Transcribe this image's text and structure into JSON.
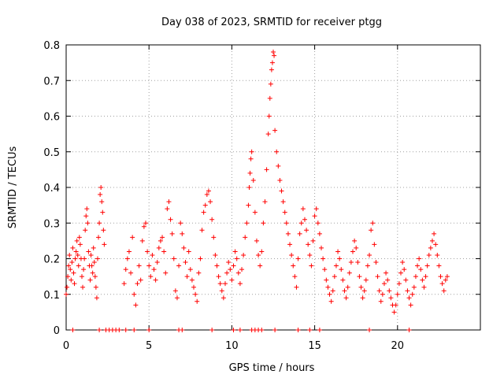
{
  "chart_data": {
    "type": "scatter",
    "title": "Day 038 of 2023, SRMTID for receiver ptgg",
    "xlabel": "GPS time / hours",
    "ylabel": "SRMTID / TECUs",
    "xlim": [
      0,
      25
    ],
    "ylim": [
      0,
      0.8
    ],
    "xticks": [
      0,
      5,
      10,
      15,
      20
    ],
    "xtick_labels": [
      "0",
      "5",
      "10",
      "15",
      "20"
    ],
    "yticks": [
      0,
      0.1,
      0.2,
      0.3,
      0.4,
      0.5,
      0.6,
      0.7,
      0.8
    ],
    "ytick_labels": [
      "0",
      "0.1",
      "0.2",
      "0.3",
      "0.4",
      "0.5",
      "0.6",
      "0.7",
      "0.8"
    ],
    "grid": true,
    "marker": "+",
    "color": "#ff0000",
    "series": [
      {
        "name": "SRMTID",
        "points": [
          [
            0.0,
            0.1
          ],
          [
            0.05,
            0.12
          ],
          [
            0.1,
            0.15
          ],
          [
            0.15,
            0.18
          ],
          [
            0.2,
            0.21
          ],
          [
            0.25,
            0.17
          ],
          [
            0.3,
            0.14
          ],
          [
            0.35,
            0.19
          ],
          [
            0.4,
            0.23
          ],
          [
            0.45,
            0.16
          ],
          [
            0.5,
            0.13
          ],
          [
            0.55,
            0.2
          ],
          [
            0.6,
            0.22
          ],
          [
            0.65,
            0.25
          ],
          [
            0.7,
            0.21
          ],
          [
            0.75,
            0.18
          ],
          [
            0.8,
            0.26
          ],
          [
            0.85,
            0.24
          ],
          [
            0.9,
            0.2
          ],
          [
            0.95,
            0.15
          ],
          [
            1.0,
            0.12
          ],
          [
            1.05,
            0.17
          ],
          [
            1.1,
            0.2
          ],
          [
            1.15,
            0.28
          ],
          [
            1.2,
            0.32
          ],
          [
            1.25,
            0.34
          ],
          [
            1.3,
            0.3
          ],
          [
            1.35,
            0.22
          ],
          [
            1.4,
            0.18
          ],
          [
            1.45,
            0.14
          ],
          [
            1.5,
            0.21
          ],
          [
            1.55,
            0.18
          ],
          [
            1.6,
            0.16
          ],
          [
            1.65,
            0.23
          ],
          [
            1.7,
            0.19
          ],
          [
            1.75,
            0.15
          ],
          [
            1.8,
            0.12
          ],
          [
            1.85,
            0.09
          ],
          [
            1.9,
            0.2
          ],
          [
            1.95,
            0.26
          ],
          [
            2.0,
            0.3
          ],
          [
            2.05,
            0.38
          ],
          [
            2.1,
            0.4
          ],
          [
            2.15,
            0.36
          ],
          [
            2.2,
            0.33
          ],
          [
            2.25,
            0.28
          ],
          [
            2.3,
            0.24
          ],
          [
            3.5,
            0.13
          ],
          [
            3.6,
            0.17
          ],
          [
            3.7,
            0.2
          ],
          [
            3.8,
            0.22
          ],
          [
            3.9,
            0.16
          ],
          [
            4.0,
            0.26
          ],
          [
            4.1,
            0.1
          ],
          [
            4.2,
            0.07
          ],
          [
            4.3,
            0.13
          ],
          [
            4.4,
            0.18
          ],
          [
            4.5,
            0.14
          ],
          [
            4.6,
            0.25
          ],
          [
            4.7,
            0.29
          ],
          [
            4.8,
            0.3
          ],
          [
            4.9,
            0.22
          ],
          [
            5.0,
            0.18
          ],
          [
            5.1,
            0.15
          ],
          [
            5.2,
            0.21
          ],
          [
            5.3,
            0.17
          ],
          [
            5.4,
            0.14
          ],
          [
            5.5,
            0.19
          ],
          [
            5.6,
            0.23
          ],
          [
            5.7,
            0.25
          ],
          [
            5.8,
            0.26
          ],
          [
            5.9,
            0.22
          ],
          [
            6.0,
            0.16
          ],
          [
            6.1,
            0.34
          ],
          [
            6.2,
            0.36
          ],
          [
            6.3,
            0.31
          ],
          [
            6.4,
            0.27
          ],
          [
            6.5,
            0.2
          ],
          [
            6.6,
            0.11
          ],
          [
            6.7,
            0.09
          ],
          [
            6.8,
            0.18
          ],
          [
            6.9,
            0.3
          ],
          [
            7.0,
            0.27
          ],
          [
            7.1,
            0.23
          ],
          [
            7.2,
            0.19
          ],
          [
            7.3,
            0.15
          ],
          [
            7.4,
            0.22
          ],
          [
            7.5,
            0.17
          ],
          [
            7.6,
            0.14
          ],
          [
            7.7,
            0.12
          ],
          [
            7.8,
            0.1
          ],
          [
            7.9,
            0.08
          ],
          [
            8.0,
            0.16
          ],
          [
            8.1,
            0.2
          ],
          [
            8.2,
            0.28
          ],
          [
            8.3,
            0.33
          ],
          [
            8.4,
            0.35
          ],
          [
            8.5,
            0.38
          ],
          [
            8.6,
            0.39
          ],
          [
            8.7,
            0.36
          ],
          [
            8.8,
            0.31
          ],
          [
            8.9,
            0.26
          ],
          [
            9.0,
            0.21
          ],
          [
            9.1,
            0.18
          ],
          [
            9.2,
            0.15
          ],
          [
            9.3,
            0.13
          ],
          [
            9.4,
            0.11
          ],
          [
            9.5,
            0.09
          ],
          [
            9.6,
            0.13
          ],
          [
            9.7,
            0.16
          ],
          [
            9.8,
            0.19
          ],
          [
            9.9,
            0.17
          ],
          [
            10.0,
            0.14
          ],
          [
            10.1,
            0.18
          ],
          [
            10.2,
            0.22
          ],
          [
            10.3,
            0.2
          ],
          [
            10.4,
            0.16
          ],
          [
            10.5,
            0.13
          ],
          [
            10.6,
            0.17
          ],
          [
            10.7,
            0.21
          ],
          [
            10.8,
            0.26
          ],
          [
            10.9,
            0.3
          ],
          [
            11.0,
            0.35
          ],
          [
            11.05,
            0.4
          ],
          [
            11.1,
            0.44
          ],
          [
            11.15,
            0.48
          ],
          [
            11.2,
            0.5
          ],
          [
            11.3,
            0.42
          ],
          [
            11.4,
            0.33
          ],
          [
            11.5,
            0.25
          ],
          [
            11.6,
            0.21
          ],
          [
            11.7,
            0.18
          ],
          [
            11.8,
            0.22
          ],
          [
            11.9,
            0.3
          ],
          [
            12.0,
            0.36
          ],
          [
            12.1,
            0.45
          ],
          [
            12.2,
            0.55
          ],
          [
            12.25,
            0.6
          ],
          [
            12.3,
            0.65
          ],
          [
            12.35,
            0.69
          ],
          [
            12.4,
            0.73
          ],
          [
            12.45,
            0.75
          ],
          [
            12.5,
            0.78
          ],
          [
            12.55,
            0.77
          ],
          [
            12.6,
            0.56
          ],
          [
            12.7,
            0.5
          ],
          [
            12.8,
            0.46
          ],
          [
            12.9,
            0.42
          ],
          [
            13.0,
            0.39
          ],
          [
            13.1,
            0.36
          ],
          [
            13.2,
            0.33
          ],
          [
            13.3,
            0.3
          ],
          [
            13.4,
            0.27
          ],
          [
            13.5,
            0.24
          ],
          [
            13.6,
            0.21
          ],
          [
            13.7,
            0.18
          ],
          [
            13.8,
            0.15
          ],
          [
            13.9,
            0.12
          ],
          [
            14.0,
            0.2
          ],
          [
            14.1,
            0.27
          ],
          [
            14.2,
            0.3
          ],
          [
            14.3,
            0.34
          ],
          [
            14.4,
            0.31
          ],
          [
            14.5,
            0.28
          ],
          [
            14.6,
            0.24
          ],
          [
            14.7,
            0.21
          ],
          [
            14.8,
            0.18
          ],
          [
            14.9,
            0.25
          ],
          [
            15.0,
            0.32
          ],
          [
            15.1,
            0.34
          ],
          [
            15.2,
            0.3
          ],
          [
            15.3,
            0.27
          ],
          [
            15.4,
            0.23
          ],
          [
            15.5,
            0.2
          ],
          [
            15.6,
            0.17
          ],
          [
            15.7,
            0.14
          ],
          [
            15.8,
            0.12
          ],
          [
            15.9,
            0.1
          ],
          [
            16.0,
            0.08
          ],
          [
            16.1,
            0.11
          ],
          [
            16.2,
            0.15
          ],
          [
            16.3,
            0.18
          ],
          [
            16.4,
            0.22
          ],
          [
            16.5,
            0.2
          ],
          [
            16.6,
            0.17
          ],
          [
            16.7,
            0.14
          ],
          [
            16.8,
            0.11
          ],
          [
            16.9,
            0.09
          ],
          [
            17.0,
            0.12
          ],
          [
            17.1,
            0.16
          ],
          [
            17.2,
            0.19
          ],
          [
            17.3,
            0.22
          ],
          [
            17.4,
            0.25
          ],
          [
            17.5,
            0.23
          ],
          [
            17.6,
            0.19
          ],
          [
            17.7,
            0.15
          ],
          [
            17.8,
            0.12
          ],
          [
            17.9,
            0.09
          ],
          [
            18.0,
            0.11
          ],
          [
            18.1,
            0.14
          ],
          [
            18.2,
            0.18
          ],
          [
            18.3,
            0.21
          ],
          [
            18.4,
            0.28
          ],
          [
            18.5,
            0.3
          ],
          [
            18.6,
            0.24
          ],
          [
            18.7,
            0.19
          ],
          [
            18.8,
            0.15
          ],
          [
            18.9,
            0.11
          ],
          [
            19.0,
            0.08
          ],
          [
            19.1,
            0.1
          ],
          [
            19.2,
            0.13
          ],
          [
            19.3,
            0.16
          ],
          [
            19.4,
            0.14
          ],
          [
            19.5,
            0.11
          ],
          [
            19.6,
            0.09
          ],
          [
            19.7,
            0.07
          ],
          [
            19.8,
            0.05
          ],
          [
            19.9,
            0.07
          ],
          [
            20.0,
            0.1
          ],
          [
            20.1,
            0.13
          ],
          [
            20.2,
            0.16
          ],
          [
            20.3,
            0.19
          ],
          [
            20.4,
            0.17
          ],
          [
            20.5,
            0.14
          ],
          [
            20.6,
            0.11
          ],
          [
            20.7,
            0.09
          ],
          [
            20.8,
            0.07
          ],
          [
            20.9,
            0.1
          ],
          [
            21.0,
            0.12
          ],
          [
            21.1,
            0.15
          ],
          [
            21.2,
            0.18
          ],
          [
            21.3,
            0.2
          ],
          [
            21.4,
            0.17
          ],
          [
            21.5,
            0.14
          ],
          [
            21.6,
            0.12
          ],
          [
            21.7,
            0.15
          ],
          [
            21.8,
            0.18
          ],
          [
            21.9,
            0.21
          ],
          [
            22.0,
            0.23
          ],
          [
            22.1,
            0.25
          ],
          [
            22.2,
            0.27
          ],
          [
            22.3,
            0.24
          ],
          [
            22.4,
            0.21
          ],
          [
            22.5,
            0.18
          ],
          [
            22.6,
            0.15
          ],
          [
            22.7,
            0.13
          ],
          [
            22.8,
            0.11
          ],
          [
            22.9,
            0.14
          ],
          [
            23.0,
            0.15
          ],
          [
            0.4,
            0.0
          ],
          [
            2.0,
            0.0
          ],
          [
            2.4,
            0.0
          ],
          [
            2.6,
            0.0
          ],
          [
            2.8,
            0.0
          ],
          [
            3.0,
            0.0
          ],
          [
            3.2,
            0.0
          ],
          [
            3.6,
            0.0
          ],
          [
            4.1,
            0.0
          ],
          [
            5.0,
            0.0
          ],
          [
            6.8,
            0.0
          ],
          [
            7.0,
            0.0
          ],
          [
            8.8,
            0.0
          ],
          [
            10.1,
            0.0
          ],
          [
            10.5,
            0.0
          ],
          [
            11.2,
            0.0
          ],
          [
            11.4,
            0.0
          ],
          [
            11.6,
            0.0
          ],
          [
            11.8,
            0.0
          ],
          [
            12.6,
            0.0
          ],
          [
            14.0,
            0.0
          ],
          [
            14.7,
            0.0
          ],
          [
            15.3,
            0.0
          ],
          [
            18.3,
            0.0
          ],
          [
            20.7,
            0.0
          ]
        ]
      }
    ]
  }
}
